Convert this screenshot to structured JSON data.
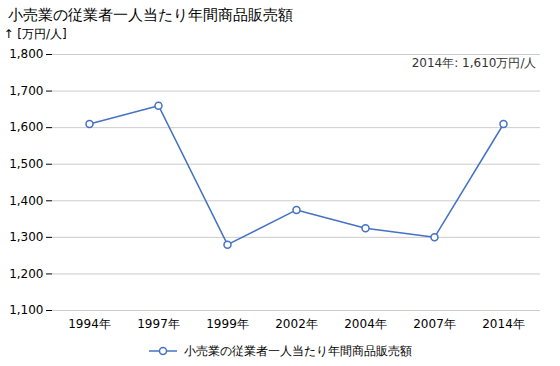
{
  "chart_data": {
    "type": "line",
    "title": "小売業の従業者一人当たり年間商品販売額",
    "ylabel": "[万円/人]",
    "annotation": "2014年: 1,610万円/人",
    "categories": [
      "1994年",
      "1997年",
      "1999年",
      "2002年",
      "2004年",
      "2007年",
      "2014年"
    ],
    "series": [
      {
        "name": "小売業の従業者一人当たり年間商品販売額",
        "color": "#4472C4",
        "marker": "circle",
        "values": [
          1610,
          1660,
          1280,
          1375,
          1325,
          1300,
          1610
        ]
      }
    ],
    "ylim": [
      1100,
      1800
    ],
    "yticks": [
      {
        "value": 1100,
        "label": "1,100"
      },
      {
        "value": 1200,
        "label": "1,200"
      },
      {
        "value": 1300,
        "label": "1,300"
      },
      {
        "value": 1400,
        "label": "1,400"
      },
      {
        "value": 1500,
        "label": "1,500"
      },
      {
        "value": 1600,
        "label": "1,600"
      },
      {
        "value": 1700,
        "label": "1,700"
      },
      {
        "value": 1800,
        "label": "1,800"
      }
    ],
    "grid": true,
    "legend": "bottom"
  }
}
